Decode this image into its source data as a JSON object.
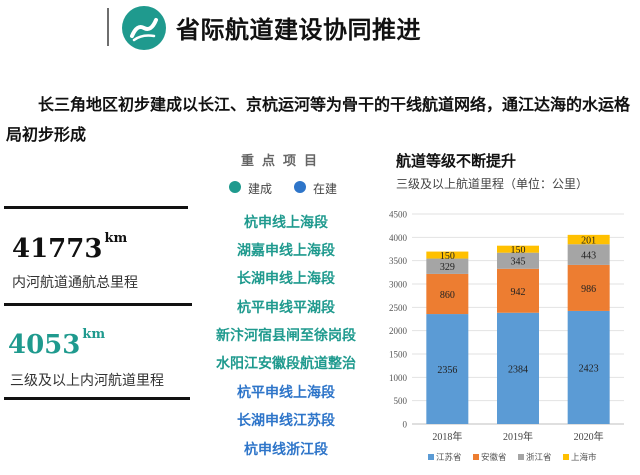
{
  "header": {
    "title": "省际航道建设协同推进"
  },
  "intro": "长三角地区初步建成以长江、京杭运河等为骨干的干线航道网络，通江达海的水运格局初步形成",
  "stats": [
    {
      "value": "41773",
      "unit": "km",
      "label": "内河航道通航总里程",
      "color": "#111111"
    },
    {
      "value": "4053",
      "unit": "km",
      "label": "三级及以上内河航道里程",
      "color": "#1f9a8e"
    }
  ],
  "key_projects": {
    "title": "重点项目",
    "legend": [
      {
        "label": "建成",
        "color": "#1f9a8e"
      },
      {
        "label": "在建",
        "color": "#2e75c9"
      }
    ],
    "items": [
      {
        "name": "杭申线上海段",
        "status": "建成",
        "color": "#1f9a8e"
      },
      {
        "name": "湖嘉申线上海段",
        "status": "建成",
        "color": "#1f9a8e"
      },
      {
        "name": "长湖申线上海段",
        "status": "建成",
        "color": "#1f9a8e"
      },
      {
        "name": "杭平申线平湖段",
        "status": "建成",
        "color": "#1f9a8e"
      },
      {
        "name": "新汴河宿县闸至徐岗段",
        "status": "建成",
        "color": "#1f9a8e"
      },
      {
        "name": "水阳江安徽段航道整治",
        "status": "建成",
        "color": "#1f9a8e"
      },
      {
        "name": "杭平申线上海段",
        "status": "在建",
        "color": "#2e75c9"
      },
      {
        "name": "长湖申线江苏段",
        "status": "在建",
        "color": "#2e75c9"
      },
      {
        "name": "杭申线浙江段",
        "status": "在建",
        "color": "#2e75c9"
      }
    ]
  },
  "chart_data": {
    "type": "bar",
    "stacked": true,
    "title": "航道等级不断提升",
    "subtitle": "三级及以上航道里程（单位：公里）",
    "categories": [
      "2018年",
      "2019年",
      "2020年"
    ],
    "series": [
      {
        "name": "江苏省",
        "color": "#5b9bd5",
        "values": [
          2356,
          2384,
          2423
        ]
      },
      {
        "name": "安徽省",
        "color": "#ed7d31",
        "values": [
          860,
          942,
          986
        ]
      },
      {
        "name": "浙江省",
        "color": "#a5a5a5",
        "values": [
          329,
          345,
          443
        ]
      },
      {
        "name": "上海市",
        "color": "#ffc000",
        "values": [
          150,
          150,
          201
        ]
      }
    ],
    "ylim": [
      0,
      4500
    ],
    "yticks": [
      0,
      500,
      1000,
      1500,
      2000,
      2500,
      3000,
      3500,
      4000,
      4500
    ],
    "grid": true,
    "legend_position": "bottom"
  }
}
